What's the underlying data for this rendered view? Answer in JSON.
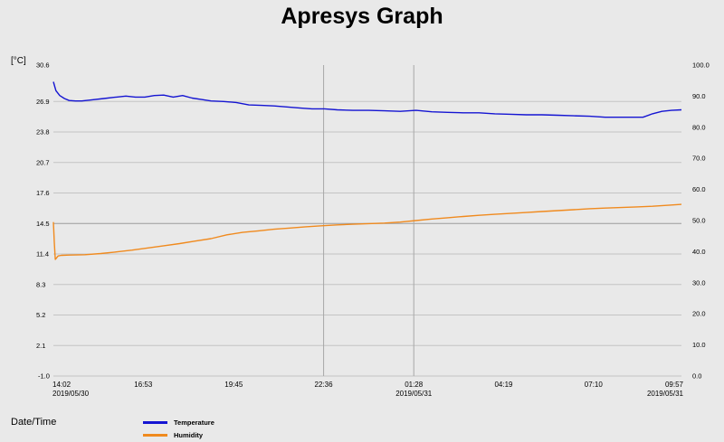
{
  "title": "Apresys Graph",
  "chart_data": {
    "type": "line",
    "title": "Apresys Graph",
    "ylabel": "[°C]",
    "xlabel": "Date/Time",
    "ylim": [
      -1.0,
      30.6
    ],
    "y2lim": [
      0.0,
      100.0
    ],
    "y_ticks": [
      "30.6",
      "26.9",
      "23.8",
      "20.7",
      "17.6",
      "14.5",
      "11.4",
      "8.3",
      "5.2",
      "2.1",
      "-1.0"
    ],
    "y_tick_values": [
      30.6,
      26.9,
      23.8,
      20.7,
      17.6,
      14.5,
      11.4,
      8.3,
      5.2,
      2.1,
      -1.0
    ],
    "y2_ticks": [
      "100.0",
      "90.0",
      "80.0",
      "70.0",
      "60.0",
      "50.0",
      "40.0",
      "30.0",
      "20.0",
      "10.0",
      "0.0"
    ],
    "y2_tick_values": [
      100,
      90,
      80,
      70,
      60,
      50,
      40,
      30,
      20,
      10,
      0
    ],
    "x_ticks": [
      {
        "time": "14:02",
        "date": "2019/05/30",
        "hours": 0
      },
      {
        "time": "16:53",
        "date": "",
        "hours": 2.85
      },
      {
        "time": "19:45",
        "date": "",
        "hours": 5.72
      },
      {
        "time": "22:36",
        "date": "",
        "hours": 8.57
      },
      {
        "time": "01:28",
        "date": "2019/05/31",
        "hours": 11.43
      },
      {
        "time": "04:19",
        "date": "",
        "hours": 14.28
      },
      {
        "time": "07:10",
        "date": "",
        "hours": 17.13
      },
      {
        "time": "09:57",
        "date": "2019/05/31",
        "hours": 19.92
      }
    ],
    "x_range_hours": [
      0,
      19.92
    ],
    "markers_hours": [
      8.57,
      11.43
    ],
    "grid": "horizontal",
    "legend_position": "bottom-left",
    "series": [
      {
        "name": "Temperature",
        "color": "#1414d2",
        "axis": "left",
        "unit": "°C",
        "x_hours": [
          0.0,
          0.08,
          0.2,
          0.35,
          0.5,
          0.7,
          0.9,
          1.2,
          1.6,
          2.0,
          2.3,
          2.6,
          2.9,
          3.2,
          3.5,
          3.8,
          4.1,
          4.4,
          4.7,
          5.0,
          5.4,
          5.8,
          6.2,
          6.6,
          7.0,
          7.4,
          7.8,
          8.2,
          8.6,
          9.0,
          9.5,
          10.0,
          10.5,
          11.0,
          11.5,
          12.0,
          12.5,
          13.0,
          13.5,
          14.0,
          14.5,
          15.0,
          15.5,
          16.0,
          16.5,
          17.0,
          17.5,
          18.0,
          18.3,
          18.7,
          19.0,
          19.3,
          19.6,
          19.92
        ],
        "values": [
          28.9,
          28.0,
          27.5,
          27.2,
          27.0,
          26.95,
          26.95,
          27.05,
          27.2,
          27.35,
          27.45,
          27.35,
          27.35,
          27.5,
          27.55,
          27.35,
          27.5,
          27.25,
          27.1,
          26.95,
          26.9,
          26.8,
          26.55,
          26.5,
          26.45,
          26.35,
          26.25,
          26.15,
          26.15,
          26.05,
          26.0,
          26.0,
          25.95,
          25.9,
          26.0,
          25.85,
          25.8,
          25.75,
          25.75,
          25.65,
          25.6,
          25.55,
          25.55,
          25.5,
          25.45,
          25.4,
          25.3,
          25.3,
          25.3,
          25.3,
          25.65,
          25.9,
          26.0,
          26.05
        ]
      },
      {
        "name": "Humidity",
        "color": "#f08a1e",
        "axis": "right",
        "unit": "%",
        "x_hours": [
          0.0,
          0.03,
          0.06,
          0.1,
          0.15,
          0.25,
          0.5,
          1.0,
          1.5,
          2.0,
          2.5,
          3.0,
          3.5,
          4.0,
          4.5,
          5.0,
          5.5,
          6.0,
          6.5,
          7.0,
          7.5,
          8.0,
          8.5,
          9.0,
          9.5,
          10.0,
          10.5,
          11.0,
          11.5,
          12.0,
          12.5,
          13.0,
          13.5,
          14.0,
          14.5,
          15.0,
          15.5,
          16.0,
          16.5,
          17.0,
          17.5,
          18.0,
          18.5,
          19.0,
          19.5,
          19.92
        ],
        "values": [
          49.5,
          43.0,
          37.5,
          38.0,
          38.6,
          38.8,
          38.9,
          39.0,
          39.4,
          39.9,
          40.5,
          41.2,
          41.9,
          42.6,
          43.4,
          44.2,
          45.4,
          46.2,
          46.7,
          47.2,
          47.6,
          48.0,
          48.3,
          48.6,
          48.8,
          49.0,
          49.2,
          49.5,
          50.0,
          50.5,
          50.9,
          51.3,
          51.7,
          52.0,
          52.3,
          52.6,
          52.9,
          53.2,
          53.5,
          53.8,
          54.0,
          54.2,
          54.4,
          54.6,
          54.9,
          55.2
        ]
      }
    ]
  },
  "legend": {
    "temperature": {
      "label": "Temperature",
      "color": "#1414d2"
    },
    "humidity": {
      "label": "Humidity",
      "color": "#f08a1e"
    }
  }
}
